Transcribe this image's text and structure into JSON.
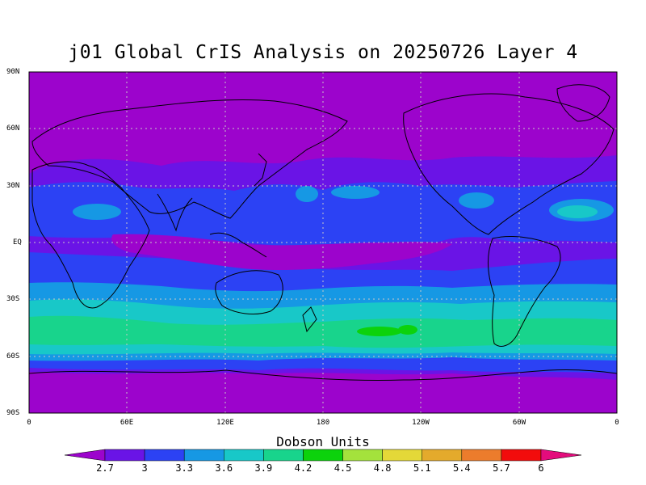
{
  "title": "j01 Global CrIS Analysis on 20250726 Layer 4",
  "lat_labels": [
    "90N",
    "60N",
    "30N",
    "EQ",
    "30S",
    "60S",
    "90S"
  ],
  "lon_labels": [
    "0",
    "60E",
    "120E",
    "180",
    "120W",
    "60W",
    "0"
  ],
  "colorbar": {
    "title": "Dobson Units",
    "tick_labels": [
      "2.7",
      "3",
      "3.3",
      "3.6",
      "3.9",
      "4.2",
      "4.5",
      "4.8",
      "5.1",
      "5.4",
      "5.7",
      "6"
    ],
    "colors": [
      "#9c04cc",
      "#6a14e6",
      "#2c42f4",
      "#1698e4",
      "#18c8c8",
      "#18d48c",
      "#0cd20c",
      "#a4e23c",
      "#e4d838",
      "#e4aa2c",
      "#ec7c2c",
      "#f20c0c",
      "#e40c7c"
    ]
  },
  "colors": {
    "land_outline": "#000000",
    "grid": "#c8c8c8"
  }
}
